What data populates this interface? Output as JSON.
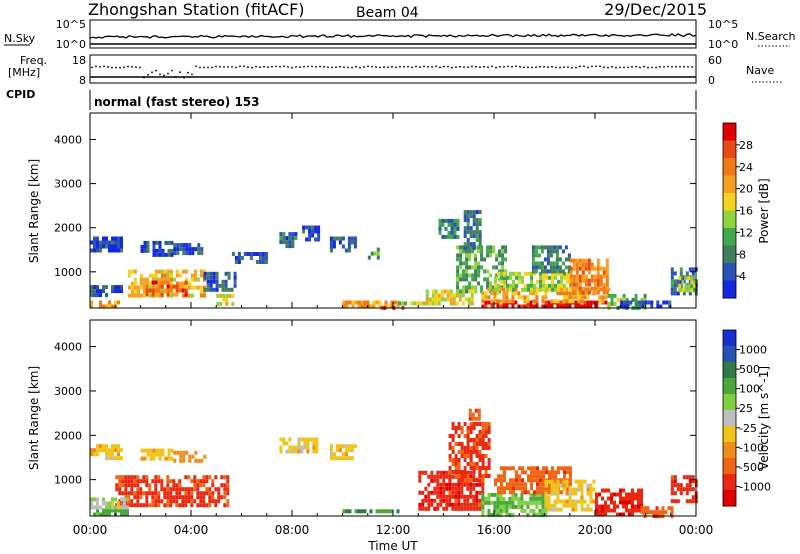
{
  "header": {
    "station": "Zhongshan Station (fitACF)",
    "beam": "Beam 04",
    "date": "29/Dec/2015"
  },
  "strips": {
    "nsky_label": "N.Sky",
    "nsky_ticks": [
      "10^5",
      "10^0"
    ],
    "nsearch_label": "N.Search",
    "nsearch_ticks": [
      "10^5",
      "10^0"
    ],
    "freq_label_1": "Freq.",
    "freq_label_2": "[MHz]",
    "freq_ticks": [
      "18",
      "8"
    ],
    "nave_label": "Nave",
    "nave_ticks": [
      "60",
      "0"
    ],
    "cpid_label": "CPID",
    "cpid_text": "normal (fast stereo) 153"
  },
  "colors": {
    "power_scale": [
      "#1428e0",
      "#2a52b8",
      "#3f7d5e",
      "#3fa84a",
      "#8fd43c",
      "#f5d21e",
      "#f5a020",
      "#f07a14",
      "#e84a10",
      "#e00000"
    ],
    "velocity_scale": [
      "#1a2ed0",
      "#2454b0",
      "#2f7a45",
      "#4aa838",
      "#7ed040",
      "#bebebe",
      "#f0c418",
      "#f08c18",
      "#f06414",
      "#e82810",
      "#e00000"
    ]
  },
  "chart_data": [
    {
      "type": "heatmap",
      "title": "",
      "xlabel": "Time UT",
      "ylabel": "Slant Range [km]",
      "xlim": [
        0,
        24
      ],
      "ylim": [
        180,
        4600
      ],
      "x_ticks": [
        "00:00",
        "04:00",
        "08:00",
        "12:00",
        "16:00",
        "20:00",
        "00:00"
      ],
      "y_ticks": [
        1000,
        2000,
        3000,
        4000
      ],
      "colorbar": {
        "label": "Power [dB]",
        "ticks": [
          "4",
          "8",
          "12",
          "16",
          "20",
          "24",
          "28"
        ],
        "range": [
          0,
          30
        ]
      },
      "regions": [
        {
          "t": [
            0.0,
            1.3
          ],
          "r": [
            1500,
            1800
          ],
          "v": 3
        },
        {
          "t": [
            2.0,
            3.2
          ],
          "r": [
            1400,
            1700
          ],
          "v": 4
        },
        {
          "t": [
            3.3,
            4.5
          ],
          "r": [
            1450,
            1650
          ],
          "v": 3
        },
        {
          "t": [
            5.5,
            7.0
          ],
          "r": [
            1250,
            1450
          ],
          "v": 4
        },
        {
          "t": [
            7.5,
            8.2
          ],
          "r": [
            1600,
            1900
          ],
          "v": 6
        },
        {
          "t": [
            8.4,
            9.0
          ],
          "r": [
            1750,
            2050
          ],
          "v": 4
        },
        {
          "t": [
            9.5,
            10.5
          ],
          "r": [
            1500,
            1800
          ],
          "v": 4
        },
        {
          "t": [
            11.0,
            11.4
          ],
          "r": [
            1350,
            1550
          ],
          "v": 10
        },
        {
          "t": [
            1.5,
            4.5
          ],
          "r": [
            450,
            1050
          ],
          "v": 18
        },
        {
          "t": [
            2.2,
            3.8
          ],
          "r": [
            500,
            800
          ],
          "v": 24
        },
        {
          "t": [
            4.5,
            5.7
          ],
          "r": [
            550,
            1000
          ],
          "v": 5
        },
        {
          "t": [
            5.0,
            5.7
          ],
          "r": [
            250,
            500
          ],
          "v": 16
        },
        {
          "t": [
            0.0,
            1.2
          ],
          "r": [
            200,
            350
          ],
          "v": 20
        },
        {
          "t": [
            0.0,
            1.2
          ],
          "r": [
            450,
            700
          ],
          "v": 4
        },
        {
          "t": [
            10.0,
            12.2
          ],
          "r": [
            250,
            350
          ],
          "v": 20
        },
        {
          "t": [
            12.2,
            13.3
          ],
          "r": [
            250,
            330
          ],
          "v": 14
        },
        {
          "t": [
            13.3,
            15.2
          ],
          "r": [
            300,
            600
          ],
          "v": 16
        },
        {
          "t": [
            14.5,
            16.5
          ],
          "r": [
            600,
            1600
          ],
          "v": 10
        },
        {
          "t": [
            14.8,
            15.5
          ],
          "r": [
            1500,
            2400
          ],
          "v": 6
        },
        {
          "t": [
            13.8,
            14.6
          ],
          "r": [
            1800,
            2200
          ],
          "v": 8
        },
        {
          "t": [
            15.5,
            20.5
          ],
          "r": [
            200,
            350
          ],
          "v": 29
        },
        {
          "t": [
            15.5,
            20.5
          ],
          "r": [
            350,
            650
          ],
          "v": 20
        },
        {
          "t": [
            16.0,
            19.0
          ],
          "r": [
            600,
            1000
          ],
          "v": 14
        },
        {
          "t": [
            17.5,
            19.0
          ],
          "r": [
            1000,
            1600
          ],
          "v": 8
        },
        {
          "t": [
            19.0,
            20.5
          ],
          "r": [
            500,
            1300
          ],
          "v": 22
        },
        {
          "t": [
            20.5,
            22.0
          ],
          "r": [
            200,
            500
          ],
          "v": 12
        },
        {
          "t": [
            21.0,
            23.0
          ],
          "r": [
            200,
            350
          ],
          "v": 4
        },
        {
          "t": [
            23.0,
            24.0
          ],
          "r": [
            500,
            1100
          ],
          "v": 6
        },
        {
          "t": [
            23.3,
            24.0
          ],
          "r": [
            600,
            900
          ],
          "v": 14
        },
        {
          "t": [
            11.5,
            12.5
          ],
          "r": [
            200,
            230
          ],
          "v": 29
        }
      ]
    },
    {
      "type": "heatmap",
      "title": "",
      "xlabel": "Time UT",
      "ylabel": "Slant Range [km]",
      "xlim": [
        0,
        24
      ],
      "ylim": [
        180,
        4600
      ],
      "x_ticks": [
        "00:00",
        "04:00",
        "08:00",
        "12:00",
        "16:00",
        "20:00",
        "00:00"
      ],
      "y_ticks": [
        1000,
        2000,
        3000,
        4000
      ],
      "colorbar": {
        "label": "Velocity [m s^-1]",
        "ticks": [
          "1000",
          "500",
          "100",
          "25",
          "-25",
          "-100",
          "-500",
          "-1000"
        ],
        "range": [
          -1200,
          1200
        ]
      },
      "regions": [
        {
          "t": [
            0.0,
            1.3
          ],
          "r": [
            1500,
            1800
          ],
          "v": 0
        },
        {
          "t": [
            2.0,
            3.2
          ],
          "r": [
            1450,
            1700
          ],
          "v": 0
        },
        {
          "t": [
            3.3,
            4.5
          ],
          "r": [
            1450,
            1650
          ],
          "v": -50
        },
        {
          "t": [
            7.5,
            9.0
          ],
          "r": [
            1600,
            1950
          ],
          "v": 0
        },
        {
          "t": [
            9.5,
            10.5
          ],
          "r": [
            1500,
            1800
          ],
          "v": 0
        },
        {
          "t": [
            1.0,
            5.5
          ],
          "r": [
            450,
            1100
          ],
          "v": -300
        },
        {
          "t": [
            0.0,
            1.5
          ],
          "r": [
            200,
            350
          ],
          "v": 150
        },
        {
          "t": [
            0.0,
            1.5
          ],
          "r": [
            350,
            600
          ],
          "v": 50
        },
        {
          "t": [
            10.0,
            12.2
          ],
          "r": [
            250,
            330
          ],
          "v": 300
        },
        {
          "t": [
            13.0,
            15.5
          ],
          "r": [
            300,
            1200
          ],
          "v": -400
        },
        {
          "t": [
            14.2,
            15.8
          ],
          "r": [
            1000,
            2300
          ],
          "v": -300
        },
        {
          "t": [
            15.0,
            15.4
          ],
          "r": [
            2300,
            2600
          ],
          "v": -200
        },
        {
          "t": [
            15.5,
            18.0
          ],
          "r": [
            200,
            700
          ],
          "v": 100
        },
        {
          "t": [
            16.0,
            19.0
          ],
          "r": [
            700,
            1300
          ],
          "v": -200
        },
        {
          "t": [
            18.0,
            20.0
          ],
          "r": [
            300,
            1000
          ],
          "v": 0
        },
        {
          "t": [
            20.0,
            21.8
          ],
          "r": [
            250,
            800
          ],
          "v": -400
        },
        {
          "t": [
            21.8,
            23.0
          ],
          "r": [
            200,
            400
          ],
          "v": -200
        },
        {
          "t": [
            23.0,
            24.0
          ],
          "r": [
            500,
            1100
          ],
          "v": -400
        }
      ]
    }
  ]
}
